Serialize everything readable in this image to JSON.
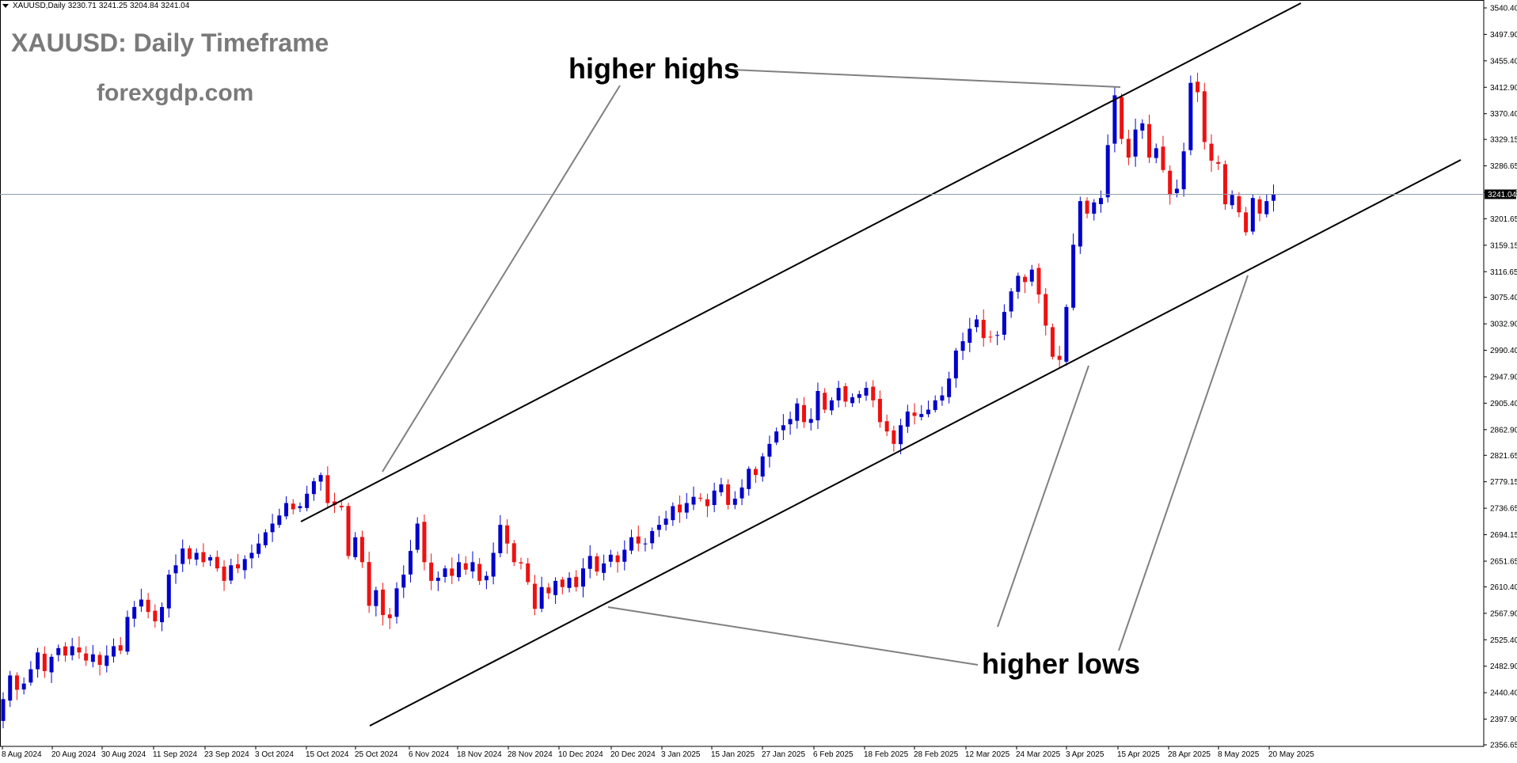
{
  "chart_header": {
    "symbol": "XAUUSD,Daily",
    "open": "3230.71",
    "high": "3241.25",
    "low": "3204.84",
    "close": "3241.04"
  },
  "overlay": {
    "title": "XAUUSD: Daily Timeframe",
    "website": "forexgdp.com",
    "annotation_highs": "higher highs",
    "annotation_lows": "higher lows"
  },
  "colors": {
    "bull": "#0000cc",
    "bear": "#ee1111",
    "trendline": "#000000",
    "annotation_line": "#808080",
    "price_line": "#8c9bab",
    "axis": "#000000"
  },
  "chart_data": {
    "type": "candlestick",
    "title": "XAUUSD: Daily Timeframe",
    "ylim": [
      2356.65,
      3540.4
    ],
    "y_ticks": [
      "3540.40",
      "3497.90",
      "3455.40",
      "3412.90",
      "3370.40",
      "3329.15",
      "3286.65",
      "3244.15",
      "3201.65",
      "3159.15",
      "3116.65",
      "3075.40",
      "3032.90",
      "2990.40",
      "2947.90",
      "2905.40",
      "2862.90",
      "2821.65",
      "2779.15",
      "2736.65",
      "2694.15",
      "2651.65",
      "2610.40",
      "2567.90",
      "2525.40",
      "2482.90",
      "2440.40",
      "2397.90",
      "2356.65"
    ],
    "x_ticks": [
      "8 Aug 2024",
      "20 Aug 2024",
      "30 Aug 2024",
      "11 Sep 2024",
      "23 Sep 2024",
      "3 Oct 2024",
      "15 Oct 2024",
      "25 Oct 2024",
      "6 Nov 2024",
      "18 Nov 2024",
      "28 Nov 2024",
      "10 Dec 2024",
      "20 Dec 2024",
      "3 Jan 2025",
      "15 Jan 2025",
      "27 Jan 2025",
      "6 Feb 2025",
      "18 Feb 2025",
      "28 Feb 2025",
      "12 Mar 2025",
      "24 Mar 2025",
      "3 Apr 2025",
      "15 Apr 2025",
      "28 Apr 2025",
      "8 May 2025",
      "20 May 2025"
    ],
    "current_price": "3241.04",
    "closes": [
      2430,
      2468,
      2445,
      2455,
      2478,
      2505,
      2475,
      2498,
      2512,
      2500,
      2515,
      2505,
      2492,
      2502,
      2485,
      2500,
      2515,
      2508,
      2562,
      2578,
      2590,
      2570,
      2555,
      2578,
      2630,
      2645,
      2672,
      2655,
      2665,
      2650,
      2658,
      2640,
      2620,
      2645,
      2640,
      2655,
      2665,
      2680,
      2698,
      2712,
      2725,
      2745,
      2735,
      2740,
      2760,
      2780,
      2790,
      2745,
      2742,
      2738,
      2660,
      2690,
      2650,
      2580,
      2605,
      2565,
      2560,
      2608,
      2630,
      2668,
      2712,
      2650,
      2620,
      2625,
      2640,
      2628,
      2650,
      2638,
      2650,
      2620,
      2628,
      2665,
      2710,
      2680,
      2650,
      2648,
      2618,
      2575,
      2610,
      2600,
      2620,
      2610,
      2625,
      2610,
      2640,
      2660,
      2635,
      2648,
      2662,
      2650,
      2670,
      2690,
      2680,
      2680,
      2700,
      2710,
      2720,
      2740,
      2730,
      2745,
      2755,
      2752,
      2740,
      2765,
      2775,
      2742,
      2752,
      2770,
      2800,
      2790,
      2820,
      2840,
      2860,
      2870,
      2880,
      2905,
      2875,
      2880,
      2925,
      2895,
      2910,
      2930,
      2908,
      2915,
      2920,
      2930,
      2910,
      2875,
      2860,
      2840,
      2870,
      2892,
      2885,
      2888,
      2895,
      2910,
      2918,
      2945,
      2990,
      3005,
      3025,
      3040,
      3010,
      3012,
      3015,
      3052,
      3085,
      3110,
      3100,
      3120,
      3080,
      3030,
      2980,
      2975,
      3060,
      3160,
      3230,
      3210,
      3228,
      3235,
      3320,
      3400,
      3330,
      3300,
      3345,
      3355,
      3300,
      3315,
      3280,
      3240,
      3250,
      3310,
      3420,
      3405,
      3325,
      3295,
      3290,
      3225,
      3240,
      3212,
      3180,
      3235,
      3210,
      3230,
      3241
    ],
    "highs_label_points": [
      "3412.90 (2025-04-22 area)",
      "2790 (2024-10-30 area)"
    ],
    "lows_label_points": [
      "2590 (2024-12-19 area)",
      "2970 (2025-04-07 area)",
      "3121 (2025-05-15 area)"
    ]
  }
}
